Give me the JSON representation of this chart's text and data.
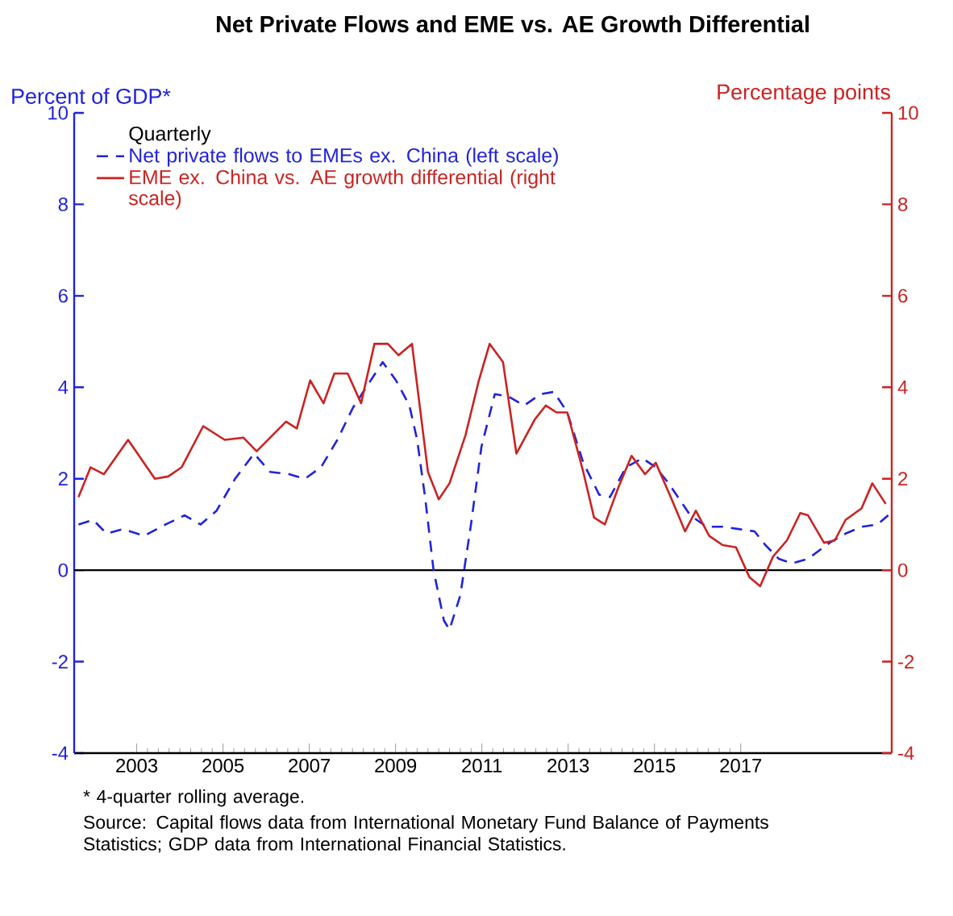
{
  "chart_data": {
    "type": "line",
    "title": "Net Private Flows and EME vs. AE Growth Differential",
    "ylabel": "Percent of GDP*",
    "y2label": "Percentage points",
    "legend_title": "Quarterly",
    "legend": "top left",
    "xlim": [
      2002.05,
      2021.0
    ],
    "xticks": [
      {
        "value": 2003.5,
        "label": "2003"
      },
      {
        "value": 2005.5,
        "label": "2005"
      },
      {
        "value": 2007.5,
        "label": "2007"
      },
      {
        "value": 2009.5,
        "label": "2009"
      },
      {
        "value": 2011.5,
        "label": "2011"
      },
      {
        "value": 2013.5,
        "label": "2013"
      },
      {
        "value": 2015.5,
        "label": "2015"
      },
      {
        "value": 2017.5,
        "label": "2017"
      }
    ],
    "ylim": [
      -4,
      10
    ],
    "yticks": [
      -4,
      -2,
      0,
      2,
      4,
      6,
      8,
      10
    ],
    "y2lim": [
      -4,
      10
    ],
    "y2ticks": [
      -4,
      -2,
      0,
      2,
      4,
      6,
      8,
      10
    ],
    "ref_lines": [
      {
        "axis": "y",
        "value": 0,
        "color": "#000000"
      }
    ],
    "series": [
      {
        "name": "Net private flows to EMEs ex. China (left scale)",
        "color": "#2222dd",
        "line_style": "dashed",
        "x": [
          2002.15,
          2002.49,
          2002.8,
          2003.18,
          2003.67,
          2004.17,
          2004.61,
          2004.98,
          2005.35,
          2005.78,
          2006.22,
          2006.59,
          2007.03,
          2007.4,
          2007.77,
          2008.15,
          2008.51,
          2008.82,
          2009.2,
          2009.51,
          2009.82,
          2010.0,
          2010.19,
          2010.38,
          2010.62,
          2010.75,
          2011.0,
          2011.24,
          2011.49,
          2011.8,
          2012.11,
          2012.48,
          2012.86,
          2013.17,
          2013.48,
          2013.85,
          2014.22,
          2014.47,
          2014.84,
          2015.22,
          2015.53,
          2015.83,
          2016.08,
          2016.33,
          2016.71,
          2017.08,
          2017.45,
          2017.82,
          2018.07,
          2018.38,
          2018.69,
          2019.06,
          2019.56,
          2019.93,
          2020.3,
          2020.67,
          2020.92
        ],
        "values": [
          1.0,
          1.1,
          0.8,
          0.9,
          0.75,
          1.0,
          1.2,
          1.0,
          1.3,
          2.0,
          2.55,
          2.15,
          2.1,
          2.0,
          2.25,
          2.85,
          3.55,
          4.0,
          4.55,
          4.15,
          3.6,
          2.85,
          1.55,
          0.0,
          -1.1,
          -1.3,
          -0.55,
          0.95,
          2.7,
          3.85,
          3.8,
          3.6,
          3.85,
          3.9,
          3.45,
          2.35,
          1.65,
          1.6,
          2.25,
          2.45,
          2.25,
          1.9,
          1.55,
          1.2,
          0.95,
          0.95,
          0.9,
          0.85,
          0.55,
          0.25,
          0.15,
          0.25,
          0.6,
          0.8,
          0.95,
          1.0,
          1.2
        ]
      },
      {
        "name": "EME ex. China vs. AE growth differential (right scale)",
        "color": "#cc2222",
        "line_style": "solid",
        "axis": "y2",
        "x": [
          2002.15,
          2002.43,
          2002.74,
          2003.3,
          2003.92,
          2004.23,
          2004.54,
          2005.04,
          2005.54,
          2005.97,
          2006.28,
          2006.96,
          2007.21,
          2007.52,
          2007.83,
          2008.08,
          2008.39,
          2008.7,
          2009.01,
          2009.32,
          2009.57,
          2009.88,
          2010.25,
          2010.5,
          2010.75,
          2011.12,
          2011.43,
          2011.68,
          2011.99,
          2012.3,
          2012.73,
          2012.98,
          2013.23,
          2013.48,
          2013.85,
          2014.1,
          2014.35,
          2014.66,
          2014.97,
          2015.28,
          2015.53,
          2015.9,
          2016.21,
          2016.46,
          2016.77,
          2017.08,
          2017.39,
          2017.7,
          2017.95,
          2018.25,
          2018.57,
          2018.88,
          2019.06,
          2019.43,
          2019.68,
          2019.93,
          2020.3,
          2020.55,
          2020.86
        ],
        "values": [
          1.6,
          2.25,
          2.1,
          2.85,
          2.0,
          2.05,
          2.25,
          3.15,
          2.85,
          2.9,
          2.6,
          3.25,
          3.1,
          4.15,
          3.65,
          4.3,
          4.3,
          3.65,
          4.95,
          4.95,
          4.7,
          4.95,
          2.15,
          1.55,
          1.9,
          2.95,
          4.15,
          4.95,
          4.55,
          2.55,
          3.3,
          3.6,
          3.45,
          3.45,
          2.15,
          1.15,
          1.0,
          1.8,
          2.5,
          2.1,
          2.35,
          1.55,
          0.85,
          1.3,
          0.75,
          0.55,
          0.5,
          -0.15,
          -0.35,
          0.3,
          0.65,
          1.25,
          1.2,
          0.6,
          0.65,
          1.1,
          1.35,
          1.9,
          1.45
        ]
      }
    ],
    "annotations": [
      "* 4-quarter rolling average.",
      "Source: Capital flows data from International Monetary Fund Balance of Payments Statistics; GDP data from International Financial Statistics."
    ]
  }
}
